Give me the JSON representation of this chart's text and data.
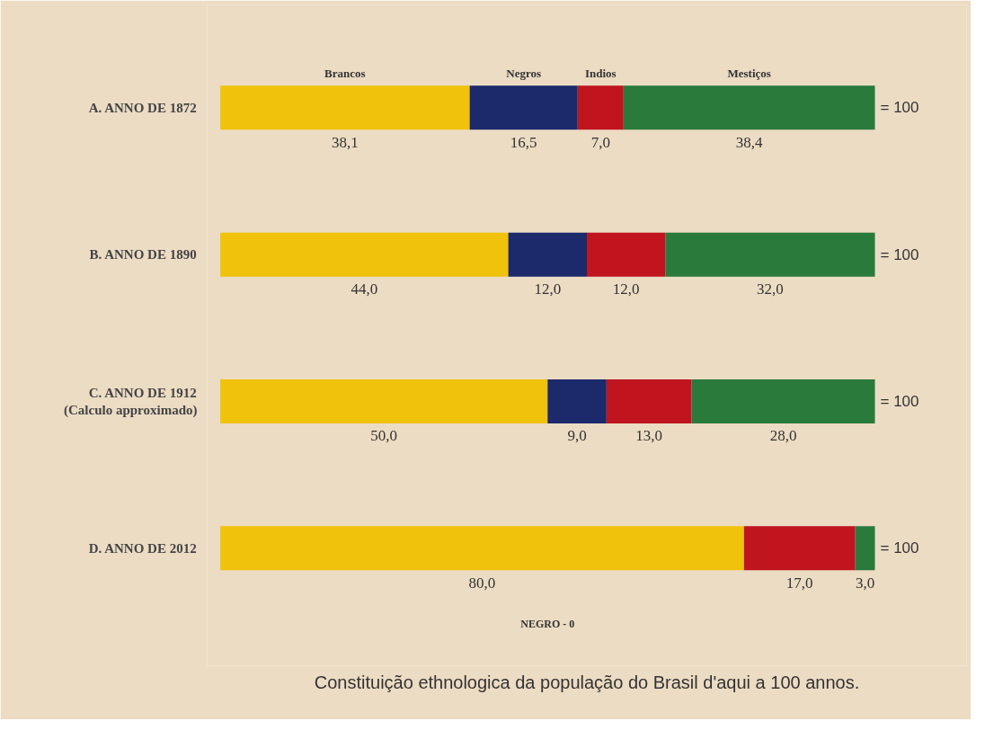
{
  "chart_data": {
    "type": "bar",
    "orientation": "horizontal",
    "stacked": true,
    "title": "Constituição ethnologica da população do Brasil d'aqui a 100 annos.",
    "categories": [
      "A. ANNO DE 1872",
      "B. ANNO DE 1890",
      "C. ANNO DE 1912\n(Calculo approximado)",
      "D. ANNO DE 2012"
    ],
    "series": [
      {
        "name": "Brancos",
        "color": "#f0c20c",
        "values": [
          38.1,
          44.0,
          50.0,
          80.0
        ],
        "value_labels": [
          "38,1",
          "44,0",
          "50,0",
          "80,0"
        ]
      },
      {
        "name": "Negros",
        "color": "#1c2a6c",
        "values": [
          16.5,
          12.0,
          9.0,
          0
        ],
        "value_labels": [
          "16,5",
          "12,0",
          "9,0",
          null
        ]
      },
      {
        "name": "Indios",
        "color": "#c0141e",
        "values": [
          7.0,
          12.0,
          13.0,
          17.0
        ],
        "value_labels": [
          "7,0",
          "12,0",
          "13,0",
          "17,0"
        ]
      },
      {
        "name": "Mestiços",
        "color": "#2a7a3c",
        "values": [
          38.4,
          32.0,
          28.0,
          3.0
        ],
        "value_labels": [
          "38,4",
          "32,0",
          "28,0",
          "3,0"
        ]
      }
    ],
    "annotations": [
      "= 100",
      "= 100",
      "= 100",
      "= 100",
      "NEGRO - 0"
    ],
    "tick_labels": "y",
    "grid": false
  }
}
